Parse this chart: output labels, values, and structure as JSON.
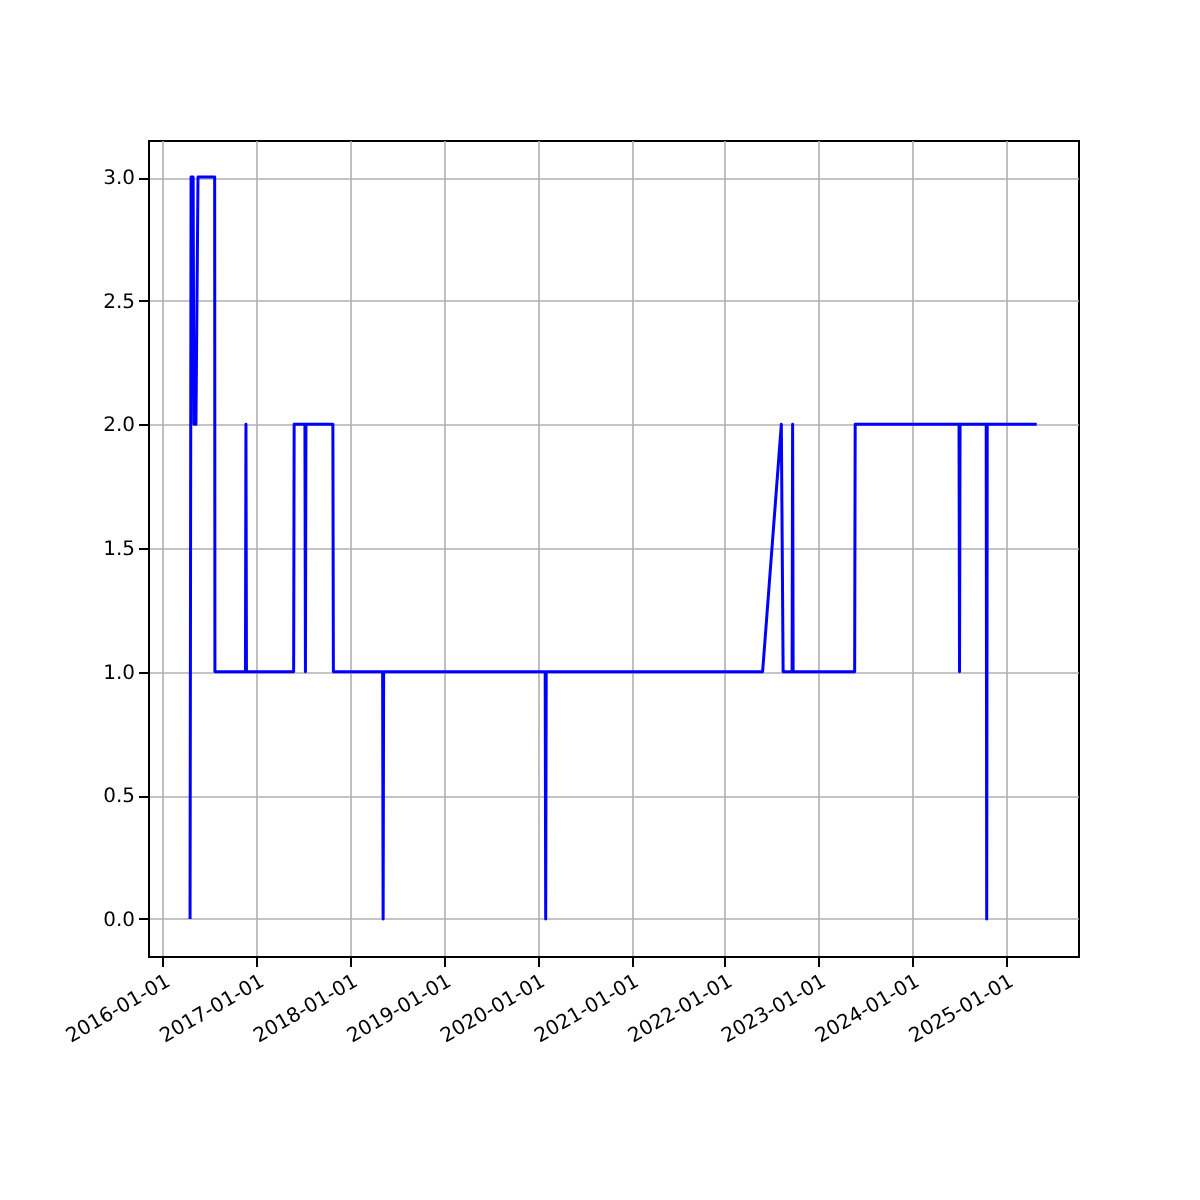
{
  "chart_data": {
    "type": "line",
    "grid": true,
    "marker": "none",
    "line_style": "solid",
    "xlim": [
      "2015-11-05",
      "2025-10-10"
    ],
    "ylim": [
      -0.15,
      3.15
    ],
    "xticks": [
      "2016-01-01",
      "2017-01-01",
      "2018-01-01",
      "2019-01-01",
      "2020-01-01",
      "2021-01-01",
      "2022-01-01",
      "2023-01-01",
      "2024-01-01",
      "2025-01-01"
    ],
    "yticks": [
      {
        "value": 0,
        "label": "0.0"
      },
      {
        "value": 0.5,
        "label": "0.5"
      },
      {
        "value": 1,
        "label": "1.0"
      },
      {
        "value": 1.5,
        "label": "1.5"
      },
      {
        "value": 2,
        "label": "2.0"
      },
      {
        "value": 2.5,
        "label": "2.5"
      },
      {
        "value": 3,
        "label": "3.0"
      }
    ],
    "series": [
      {
        "color": "#0000ff",
        "x": [
          "2016-04-17",
          "2016-04-21",
          "2016-04-29",
          "2016-05-02",
          "2016-05-10",
          "2016-05-18",
          "2016-07-22",
          "2016-07-23",
          "2016-11-19",
          "2016-11-21",
          "2016-11-23",
          "2017-05-26",
          "2017-05-28",
          "2017-07-09",
          "2017-07-11",
          "2017-07-13",
          "2017-10-26",
          "2017-10-28",
          "2018-05-08",
          "2018-05-10",
          "2018-05-12",
          "2020-02-01",
          "2020-02-03",
          "2020-02-05",
          "2022-05-29",
          "2022-08-10",
          "2022-08-17",
          "2022-09-21",
          "2022-09-23",
          "2022-09-25",
          "2023-05-23",
          "2023-05-25",
          "2024-07-03",
          "2024-07-05",
          "2024-07-07",
          "2024-10-17",
          "2024-10-19",
          "2024-10-21",
          "2025-05-02"
        ],
        "values": [
          0,
          3,
          3,
          2,
          2,
          3,
          3,
          1,
          1,
          2,
          1,
          1,
          2,
          2,
          1,
          2,
          2,
          1,
          1,
          0,
          1,
          1,
          0,
          1,
          1,
          2,
          1,
          1,
          2,
          1,
          1,
          2,
          2,
          1,
          2,
          2,
          0,
          2,
          2
        ]
      }
    ]
  }
}
